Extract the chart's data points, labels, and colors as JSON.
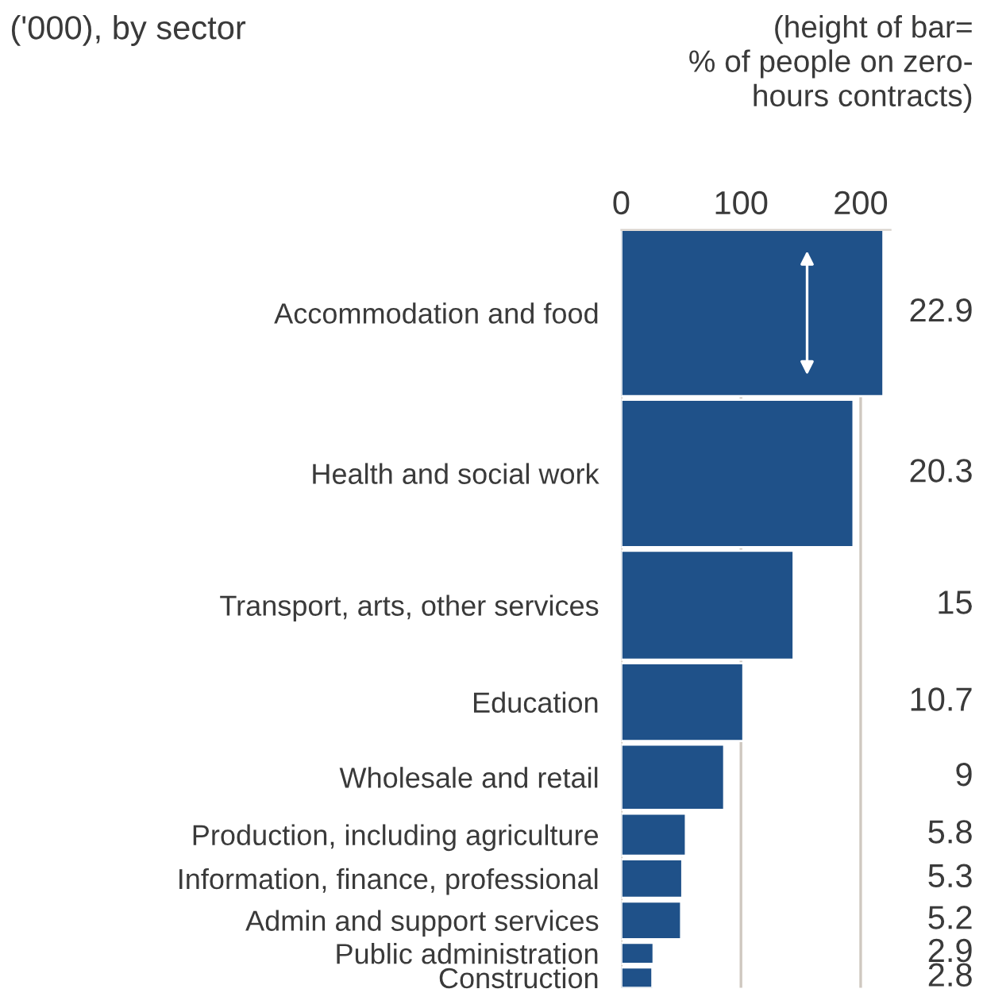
{
  "chart_data": {
    "type": "bar",
    "orientation": "horizontal",
    "title": "('000), by sector",
    "annotations": [
      "(height of bar=\n% of people on zero-\nhours contracts)",
      "22.9",
      "20.3",
      "15",
      "10.7",
      "9",
      "5.8",
      "5.3",
      "5.2",
      "2.9",
      "2.8"
    ],
    "categories": [
      "Accommodation and food",
      "Health and social work",
      "Transport, arts, other services",
      "Education",
      "Wholesale and retail",
      "Production, including agriculture",
      "Information, finance, professional",
      "Admin and support services",
      "Public administration",
      "Construction"
    ],
    "values": [
      219,
      194,
      144,
      102,
      86,
      54,
      51,
      50,
      27,
      26
    ],
    "color": "#1f5189",
    "xlim": [
      0,
      225
    ],
    "xticks": [
      0,
      100,
      200
    ],
    "grid": "x",
    "legend": false
  }
}
